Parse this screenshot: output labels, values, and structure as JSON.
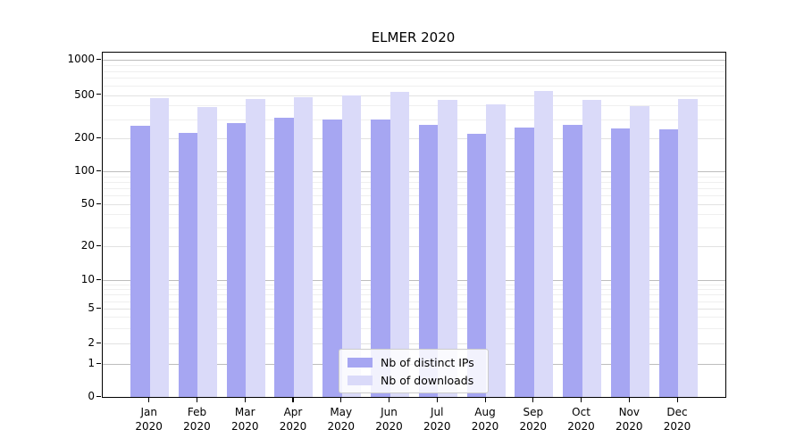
{
  "chart_data": {
    "type": "bar",
    "title": "ELMER 2020",
    "year": "2020",
    "categories": [
      "Jan 2020",
      "Feb 2020",
      "Mar 2020",
      "Apr 2020",
      "May 2020",
      "Jun 2020",
      "Jul 2020",
      "Aug 2020",
      "Sep 2020",
      "Oct 2020",
      "Nov 2020",
      "Dec 2020"
    ],
    "months": [
      "Jan",
      "Feb",
      "Mar",
      "Apr",
      "May",
      "Jun",
      "Jul",
      "Aug",
      "Sep",
      "Oct",
      "Nov",
      "Dec"
    ],
    "series": [
      {
        "name": "Nb of distinct IPs",
        "color": "#a6a6f2",
        "values": [
          260,
          224,
          274,
          310,
          300,
          298,
          268,
          218,
          250,
          268,
          245,
          240
        ]
      },
      {
        "name": "Nb of downloads",
        "color": "#dadaf9",
        "values": [
          470,
          386,
          460,
          480,
          500,
          532,
          450,
          410,
          545,
          452,
          398,
          456
        ]
      }
    ],
    "yscale": "symlog",
    "y_ticks": [
      0,
      1,
      2,
      5,
      10,
      20,
      50,
      100,
      200,
      500,
      1000
    ],
    "ylim": [
      0,
      1000
    ],
    "grid": true,
    "legend_position": "lower center",
    "colors": {
      "grid_major": "#bdbdbd",
      "grid_minor": "#efefef",
      "axis": "#000000"
    }
  }
}
